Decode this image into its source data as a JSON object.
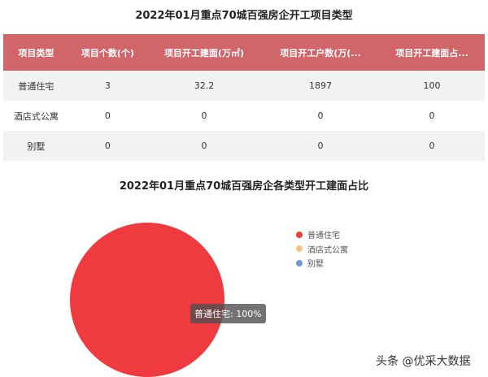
{
  "table": {
    "title": "2022年01月重点70城百强房企开工项目类型",
    "headers": [
      "项目类型",
      "项目个数(个)",
      "项目开工建面(万㎡)",
      "项目开工户数(万(...",
      "项目开工建面占..."
    ],
    "rows": [
      [
        "普通住宅",
        "3",
        "32.2",
        "1897",
        "100"
      ],
      [
        "酒店式公寓",
        "0",
        "0",
        "0",
        "0"
      ],
      [
        "别墅",
        "0",
        "0",
        "0",
        "0"
      ]
    ]
  },
  "chart_data": {
    "type": "pie",
    "title": "2022年01月重点70城百强房企各类型开工建面占比",
    "categories": [
      "普通住宅",
      "酒店式公寓",
      "别墅"
    ],
    "values": [
      100,
      0,
      0
    ],
    "colors": [
      "#ef3a3f",
      "#f0c27a",
      "#6f95d0"
    ],
    "legend_position": "right",
    "tooltip": "普通住宅: 100%"
  },
  "watermark": "头条 @优采大数据"
}
